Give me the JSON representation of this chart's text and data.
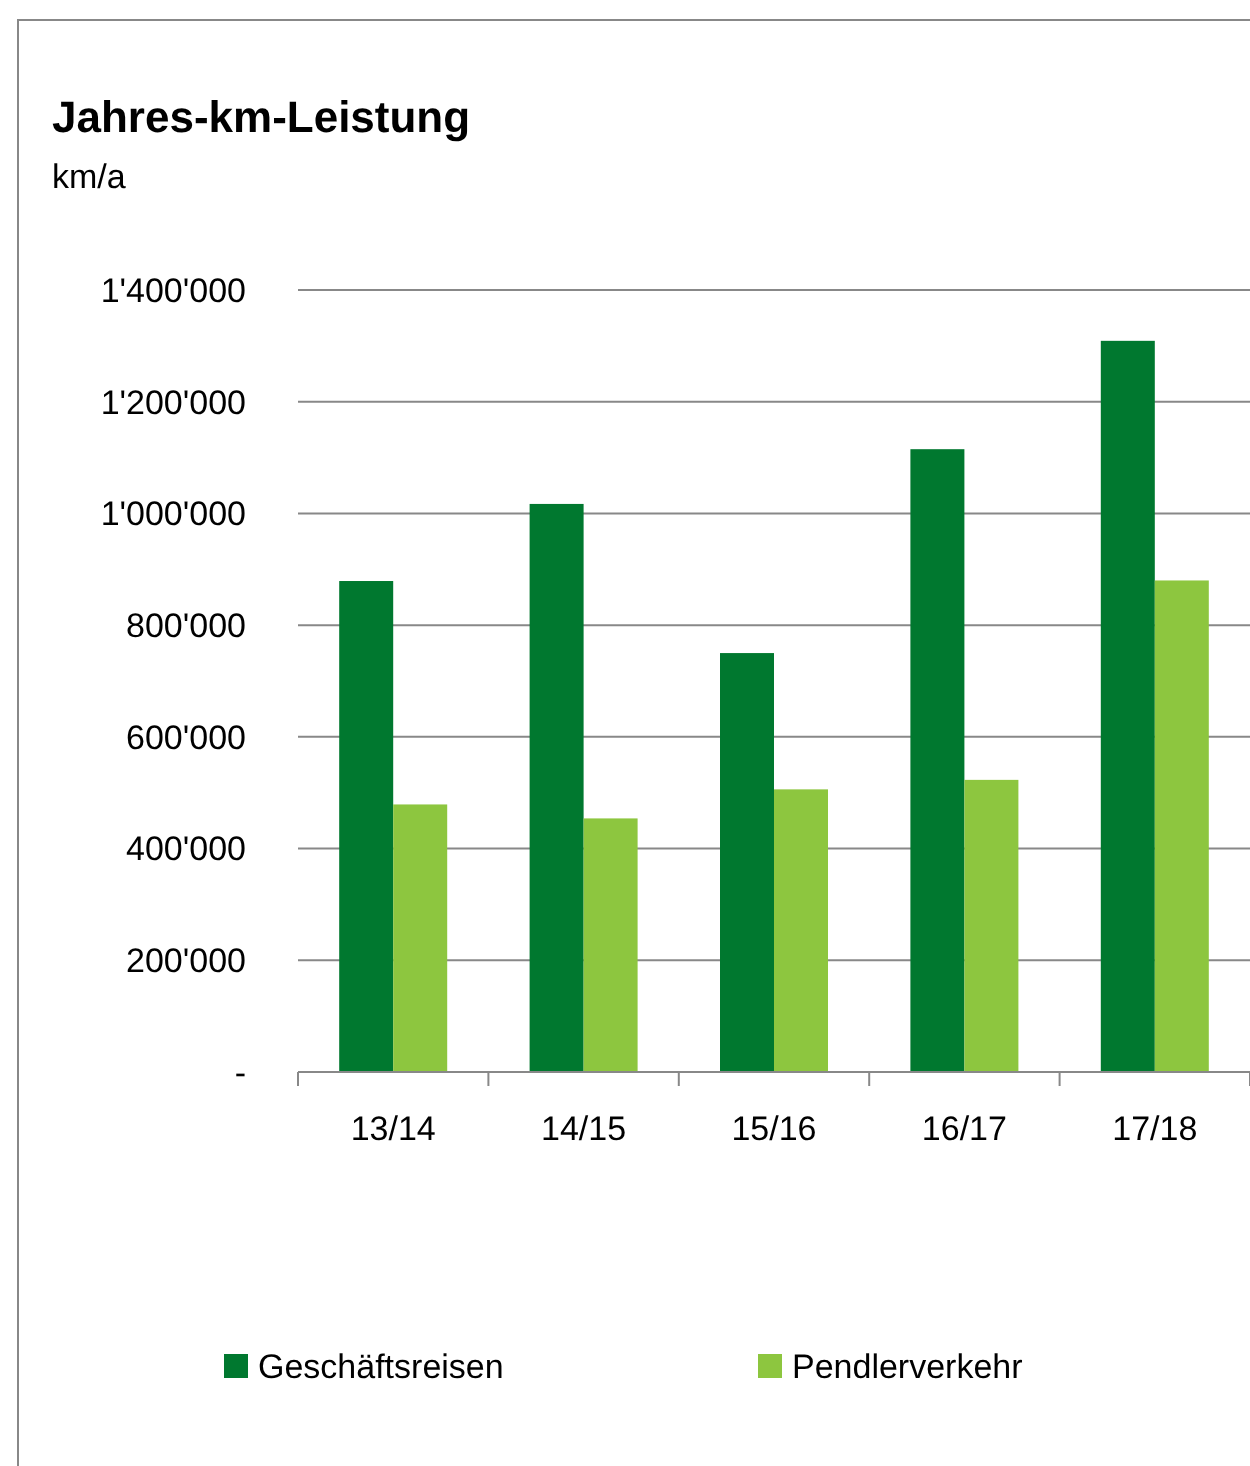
{
  "chart_data": {
    "type": "bar",
    "title": "Jahres-km-Leistung",
    "ylabel": "km/a",
    "categories": [
      "13/14",
      "14/15",
      "15/16",
      "16/17",
      "17/18"
    ],
    "series": [
      {
        "name": "Geschäftsreisen",
        "color": "#00782f",
        "values": [
          879000,
          1017000,
          750000,
          1115000,
          1309000
        ]
      },
      {
        "name": "Pendlerverkehr",
        "color": "#8dc63f",
        "values": [
          479000,
          454000,
          506000,
          523000,
          880000
        ]
      }
    ],
    "ylim": [
      0,
      1400000
    ],
    "yticks": [
      {
        "value": 0,
        "label": "-"
      },
      {
        "value": 200000,
        "label": "200'000"
      },
      {
        "value": 400000,
        "label": "400'000"
      },
      {
        "value": 600000,
        "label": "600'000"
      },
      {
        "value": 800000,
        "label": "800'000"
      },
      {
        "value": 1000000,
        "label": "1'000'000"
      },
      {
        "value": 1200000,
        "label": "1'200'000"
      },
      {
        "value": 1400000,
        "label": "1'400'000"
      }
    ],
    "grid": "y",
    "legend": "bottom"
  }
}
